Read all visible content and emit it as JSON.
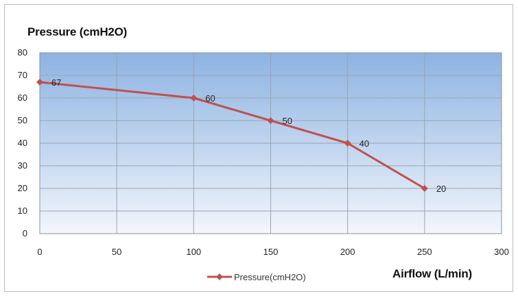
{
  "chart_data": {
    "type": "line",
    "y_axis_title": "Pressure (cmH2O)",
    "x_axis_title": "Airflow (L/min)",
    "x": [
      0,
      100,
      150,
      200,
      250
    ],
    "series": [
      {
        "name": "Pressure(cmH2O)",
        "values": [
          67,
          60,
          50,
          40,
          20
        ]
      }
    ],
    "data_labels": [
      "67",
      "60",
      "50",
      "40",
      "20"
    ],
    "xlim": [
      0,
      300
    ],
    "ylim": [
      0,
      80
    ],
    "x_ticks": [
      "0",
      "50",
      "100",
      "150",
      "200",
      "250",
      "300"
    ],
    "y_ticks": [
      "0",
      "10",
      "20",
      "30",
      "40",
      "50",
      "60",
      "70",
      "80"
    ],
    "grid": true,
    "legend_position": "bottom",
    "colors": {
      "line": "#c0504d",
      "plot_top": "#8db3e2",
      "plot_bottom": "#f2f6fc",
      "grid": "#9aa3ad"
    }
  }
}
